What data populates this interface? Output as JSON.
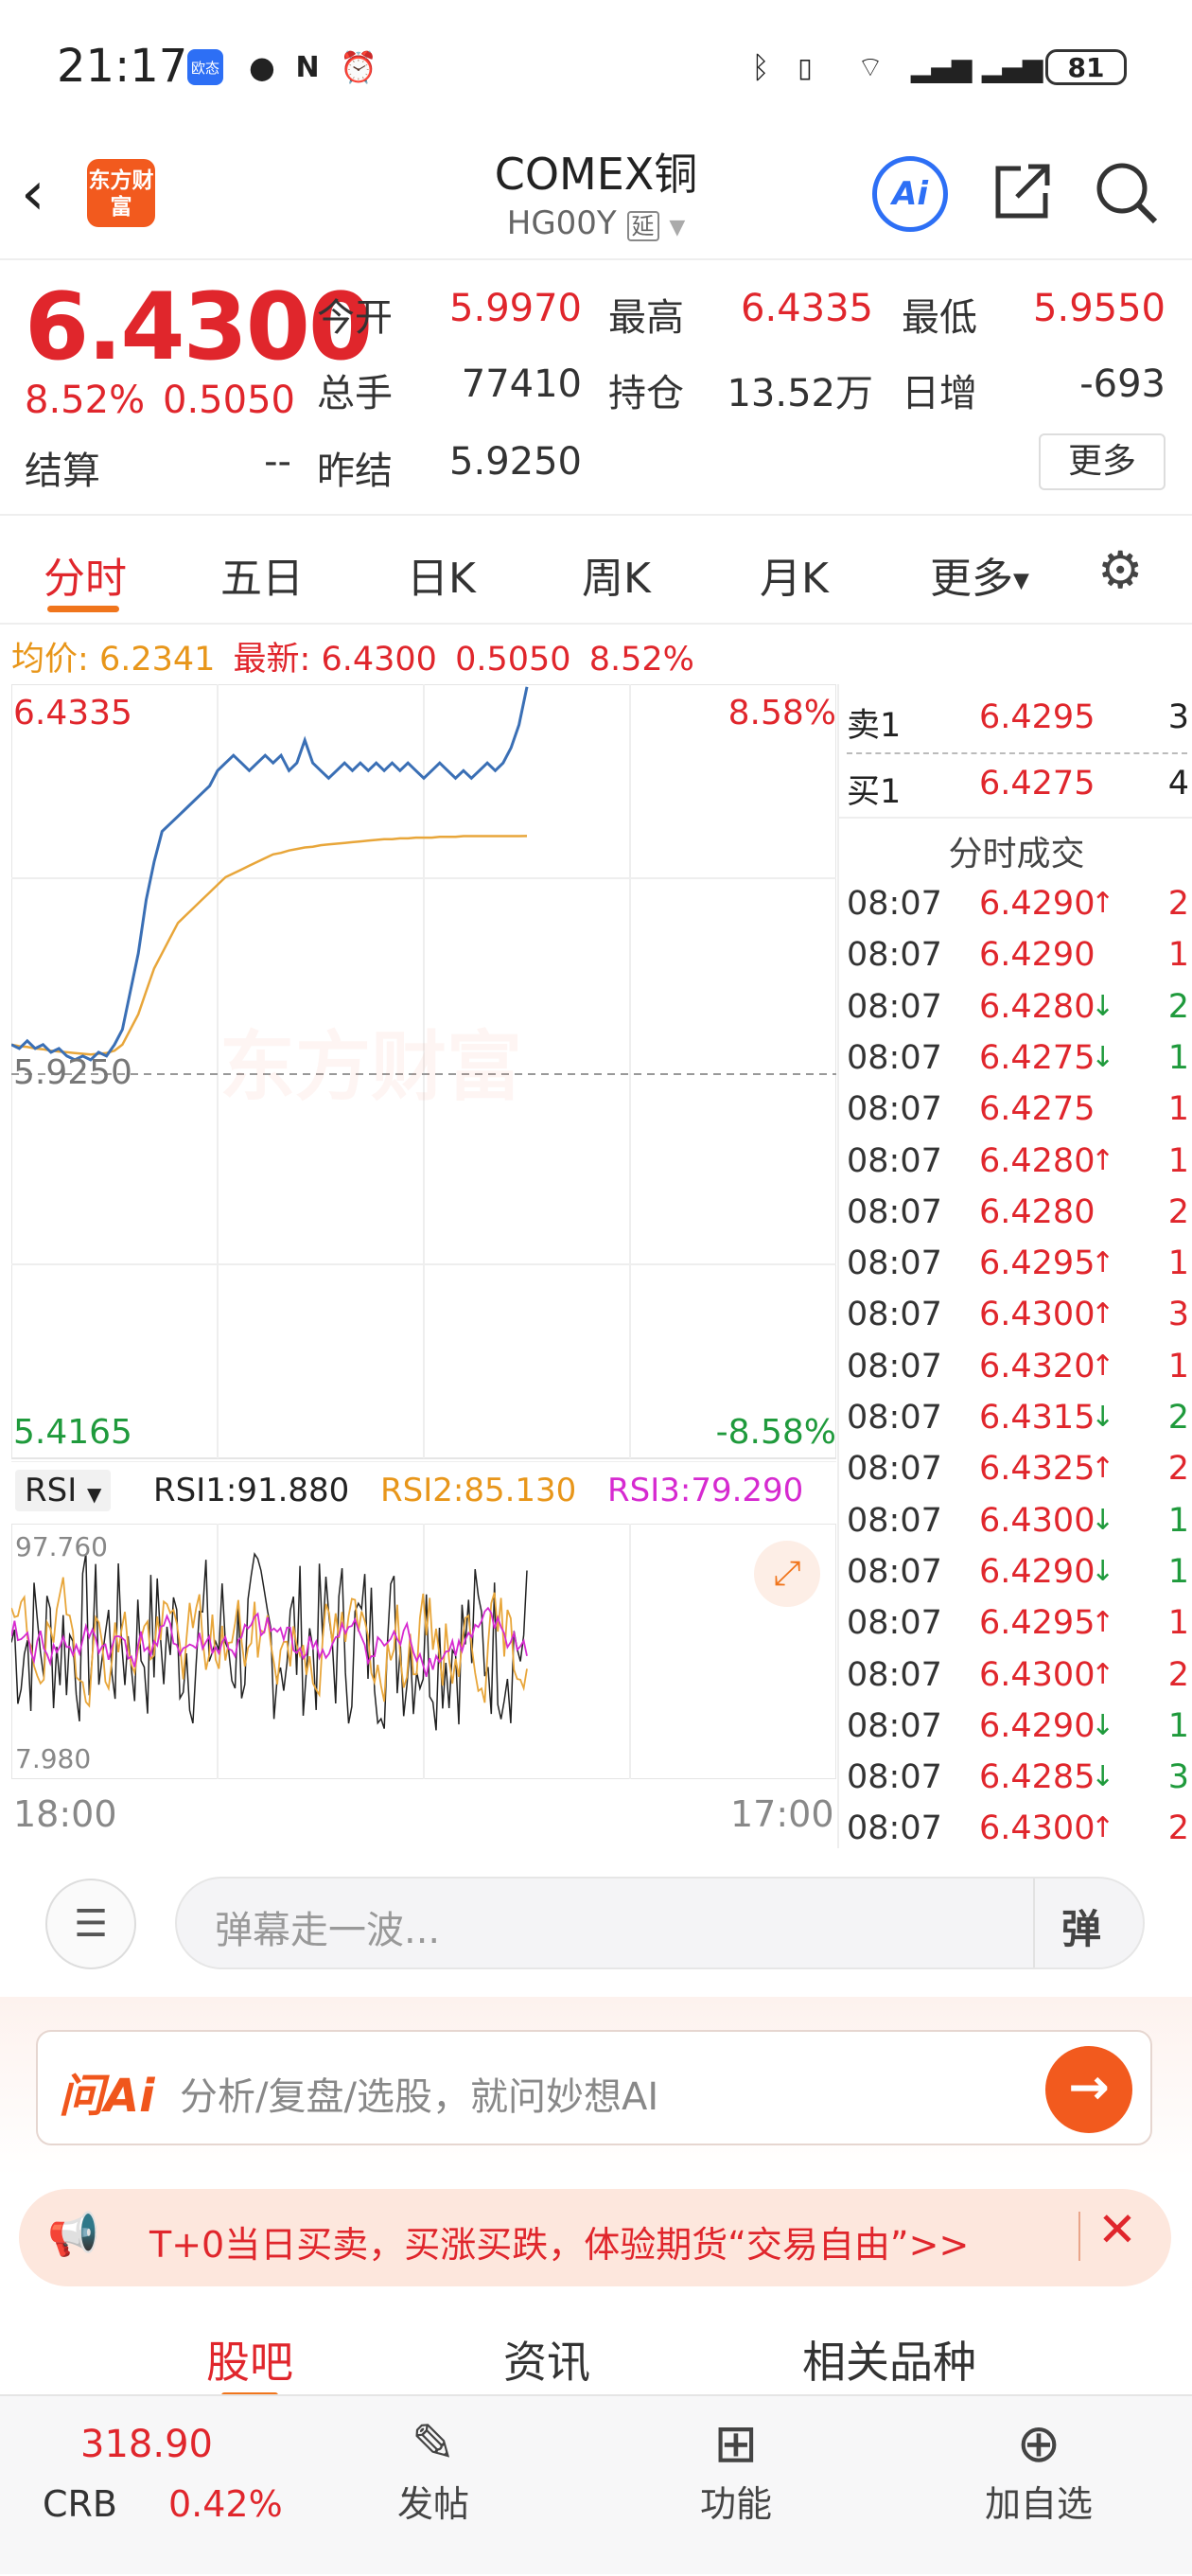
{
  "status_bar": {
    "time": "21:17",
    "badge": "欧态",
    "battery": "81"
  },
  "header": {
    "logo": "东方财富",
    "title": "COMEX铜",
    "subtitle": "HG00Y",
    "delay_tag": "延",
    "ai_label": "Ai"
  },
  "quote": {
    "price": "6.4300",
    "change_pct": "8.52%",
    "change": "0.5050",
    "settle_label": "结算",
    "settle_value": "--",
    "fields": [
      {
        "label": "今开",
        "value": "5.9970"
      },
      {
        "label": "最高",
        "value": "6.4335"
      },
      {
        "label": "最低",
        "value": "5.9550"
      },
      {
        "label": "总手",
        "value": "77410"
      },
      {
        "label": "持仓",
        "value": "13.52万"
      },
      {
        "label": "日增",
        "value": "-693"
      },
      {
        "label": "昨结",
        "value": "5.9250"
      }
    ],
    "more_label": "更多"
  },
  "tabs": [
    "分时",
    "五日",
    "日K",
    "周K",
    "月K",
    "更多"
  ],
  "info_line": {
    "avg_label": "均价:",
    "avg": "6.2341",
    "latest_label": "最新:",
    "latest": "6.4300",
    "change": "0.5050",
    "pct": "8.52%"
  },
  "chart": {
    "top_price": "6.4335",
    "top_pct": "8.58%",
    "mid_price": "5.9250",
    "bottom_price": "5.4165",
    "bottom_pct": "-8.58%",
    "watermark": "东方财富",
    "start_time": "18:00",
    "end_time": "17:00"
  },
  "chart_data": {
    "type": "line",
    "ylim": [
      5.4165,
      6.4335
    ],
    "reference": 5.925,
    "series": [
      {
        "values": [
          5.96,
          5.955,
          5.965,
          5.955,
          5.96,
          5.95,
          5.955,
          5.945,
          5.94,
          5.945,
          5.94,
          5.95,
          5.945,
          5.96,
          5.98,
          6.03,
          6.08,
          6.15,
          6.2,
          6.24,
          6.25,
          6.26,
          6.27,
          6.28,
          6.29,
          6.3,
          6.32,
          6.33,
          6.34,
          6.33,
          6.32,
          6.33,
          6.34,
          6.33,
          6.34,
          6.32,
          6.33,
          6.36,
          6.33,
          6.32,
          6.31,
          6.32,
          6.33,
          6.32,
          6.33,
          6.32,
          6.33,
          6.32,
          6.33,
          6.32,
          6.33,
          6.32,
          6.31,
          6.32,
          6.33,
          6.32,
          6.31,
          6.32,
          6.31,
          6.32,
          6.33,
          6.32,
          6.33,
          6.35,
          6.38,
          6.43
        ]
      },
      {
        "values": [
          5.96,
          5.958,
          5.957,
          5.955,
          5.954,
          5.952,
          5.951,
          5.95,
          5.949,
          5.948,
          5.947,
          5.948,
          5.949,
          5.952,
          5.96,
          5.98,
          6.0,
          6.03,
          6.06,
          6.08,
          6.1,
          6.12,
          6.13,
          6.14,
          6.15,
          6.16,
          6.17,
          6.18,
          6.185,
          6.19,
          6.195,
          6.2,
          6.205,
          6.21,
          6.212,
          6.215,
          6.217,
          6.219,
          6.22,
          6.222,
          6.223,
          6.224,
          6.225,
          6.226,
          6.227,
          6.228,
          6.229,
          6.23,
          6.23,
          6.231,
          6.231,
          6.232,
          6.232,
          6.232,
          6.233,
          6.233,
          6.233,
          6.234,
          6.234,
          6.234,
          6.234,
          6.234,
          6.234,
          6.234,
          6.234,
          6.2341
        ]
      }
    ],
    "rsi": {
      "rsi1": "RSI1:91.880",
      "rsi2": "RSI2:85.130",
      "rsi3": "RSI3:79.290",
      "max": "97.760",
      "min": "7.980",
      "label": "RSI"
    }
  },
  "order_book": {
    "sell": {
      "label": "卖1",
      "price": "6.4295",
      "vol": "3"
    },
    "buy": {
      "label": "买1",
      "price": "6.4275",
      "vol": "4"
    },
    "trades_title": "分时成交",
    "trades": [
      {
        "t": "08:07",
        "p": "6.4290",
        "d": "up",
        "v": "2"
      },
      {
        "t": "08:07",
        "p": "6.4290",
        "d": "",
        "v": "1"
      },
      {
        "t": "08:07",
        "p": "6.4280",
        "d": "down",
        "v": "2"
      },
      {
        "t": "08:07",
        "p": "6.4275",
        "d": "down",
        "v": "1"
      },
      {
        "t": "08:07",
        "p": "6.4275",
        "d": "",
        "v": "1"
      },
      {
        "t": "08:07",
        "p": "6.4280",
        "d": "up",
        "v": "1"
      },
      {
        "t": "08:07",
        "p": "6.4280",
        "d": "",
        "v": "2"
      },
      {
        "t": "08:07",
        "p": "6.4295",
        "d": "up",
        "v": "1"
      },
      {
        "t": "08:07",
        "p": "6.4300",
        "d": "up",
        "v": "3"
      },
      {
        "t": "08:07",
        "p": "6.4320",
        "d": "up",
        "v": "1"
      },
      {
        "t": "08:07",
        "p": "6.4315",
        "d": "down",
        "v": "2"
      },
      {
        "t": "08:07",
        "p": "6.4325",
        "d": "up",
        "v": "2"
      },
      {
        "t": "08:07",
        "p": "6.4300",
        "d": "down",
        "v": "1"
      },
      {
        "t": "08:07",
        "p": "6.4290",
        "d": "down",
        "v": "1"
      },
      {
        "t": "08:07",
        "p": "6.4295",
        "d": "up",
        "v": "1"
      },
      {
        "t": "08:07",
        "p": "6.4300",
        "d": "up",
        "v": "2"
      },
      {
        "t": "08:07",
        "p": "6.4290",
        "d": "down",
        "v": "1"
      },
      {
        "t": "08:07",
        "p": "6.4285",
        "d": "down",
        "v": "3"
      },
      {
        "t": "08:07",
        "p": "6.4300",
        "d": "up",
        "v": "2"
      }
    ]
  },
  "danmu": {
    "placeholder": "弹幕走一波...",
    "btn": "弹"
  },
  "ai_bar": {
    "logo": "问Ai",
    "placeholder": "分析/复盘/选股，就问妙想AI"
  },
  "promo": {
    "text": "T+0当日买卖，买涨买跌，体验期货“交易自由”>>"
  },
  "sub_tabs": [
    "股吧",
    "资讯",
    "相关品种"
  ],
  "bottom_bar": {
    "crb_value": "318.90",
    "crb_label": "CRB",
    "crb_pct": "0.42%",
    "post": "发帖",
    "func": "功能",
    "add": "加自选"
  },
  "colors": {
    "up": "#e0262c",
    "down": "#1f9a3c",
    "accent": "#f0751c",
    "price_line": "#3a6fb5",
    "avg_line": "#e8a63a"
  }
}
